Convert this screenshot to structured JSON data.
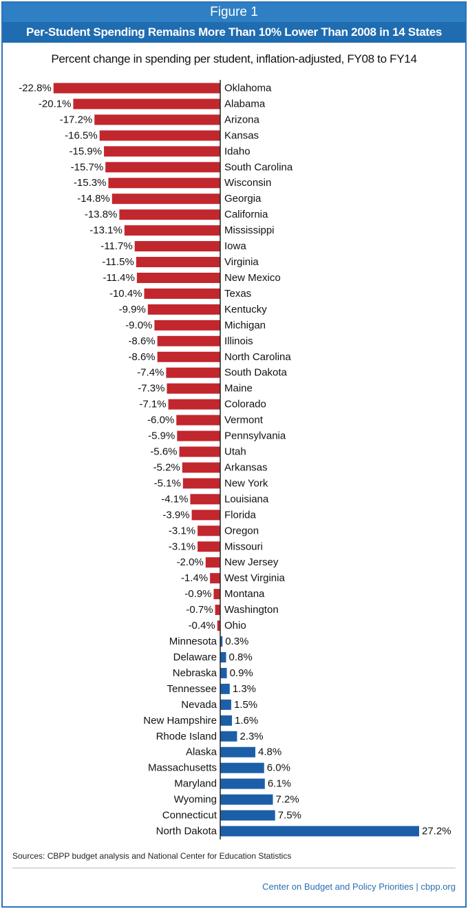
{
  "header": {
    "figure_label": "Figure 1",
    "title": "Per-Student Spending Remains More Than 10% Lower Than 2008 in 14 States"
  },
  "footer": {
    "sources": "Sources: CBPP budget analysis and National Center for Education Statistics",
    "credit": "Center on Budget and Policy Priorities | cbpp.org"
  },
  "colors": {
    "negative": "#c1272d",
    "positive": "#1c5fa8",
    "header": "#2f7fc4"
  },
  "chart_data": {
    "type": "bar",
    "orientation": "horizontal",
    "title": "Per-Student Spending Remains More Than 10% Lower Than 2008 in 14 States",
    "subtitle": "Percent change in spending per student, inflation-adjusted, FY08 to FY14",
    "xlabel": "",
    "ylabel": "",
    "xlim": [
      -22.8,
      27.2
    ],
    "grid": false,
    "categories": [
      "Oklahoma",
      "Alabama",
      "Arizona",
      "Kansas",
      "Idaho",
      "South Carolina",
      "Wisconsin",
      "Georgia",
      "California",
      "Mississippi",
      "Iowa",
      "Virginia",
      "New Mexico",
      "Texas",
      "Kentucky",
      "Michigan",
      "Illinois",
      "North Carolina",
      "South Dakota",
      "Maine",
      "Colorado",
      "Vermont",
      "Pennsylvania",
      "Utah",
      "Arkansas",
      "New York",
      "Louisiana",
      "Florida",
      "Oregon",
      "Missouri",
      "New Jersey",
      "West Virginia",
      "Montana",
      "Washington",
      "Ohio",
      "Minnesota",
      "Delaware",
      "Nebraska",
      "Tennessee",
      "Nevada",
      "New Hampshire",
      "Rhode Island",
      "Alaska",
      "Massachusetts",
      "Maryland",
      "Wyoming",
      "Connecticut",
      "North Dakota"
    ],
    "values": [
      -22.8,
      -20.1,
      -17.2,
      -16.5,
      -15.9,
      -15.7,
      -15.3,
      -14.8,
      -13.8,
      -13.1,
      -11.7,
      -11.5,
      -11.4,
      -10.4,
      -9.9,
      -9.0,
      -8.6,
      -8.6,
      -7.4,
      -7.3,
      -7.1,
      -6.0,
      -5.9,
      -5.6,
      -5.2,
      -5.1,
      -4.1,
      -3.9,
      -3.1,
      -3.1,
      -2.0,
      -1.4,
      -0.9,
      -0.7,
      -0.4,
      0.3,
      0.8,
      0.9,
      1.3,
      1.5,
      1.6,
      2.3,
      4.8,
      6.0,
      6.1,
      7.2,
      7.5,
      27.2
    ],
    "labels": [
      "-22.8%",
      "-20.1%",
      "-17.2%",
      "-16.5%",
      "-15.9%",
      "-15.7%",
      "-15.3%",
      "-14.8%",
      "-13.8%",
      "-13.1%",
      "-11.7%",
      "-11.5%",
      "-11.4%",
      "-10.4%",
      "-9.9%",
      "-9.0%",
      "-8.6%",
      "-8.6%",
      "-7.4%",
      "-7.3%",
      "-7.1%",
      "-6.0%",
      "-5.9%",
      "-5.6%",
      "-5.2%",
      "-5.1%",
      "-4.1%",
      "-3.9%",
      "-3.1%",
      "-3.1%",
      "-2.0%",
      "-1.4%",
      "-0.9%",
      "-0.7%",
      "-0.4%",
      "0.3%",
      "0.8%",
      "0.9%",
      "1.3%",
      "1.5%",
      "1.6%",
      "2.3%",
      "4.8%",
      "6.0%",
      "6.1%",
      "7.2%",
      "7.5%",
      "27.2%"
    ]
  }
}
